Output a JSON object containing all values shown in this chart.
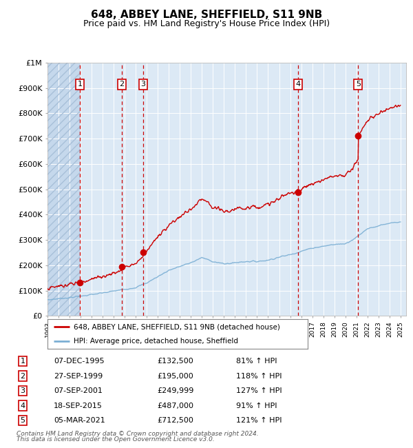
{
  "title": "648, ABBEY LANE, SHEFFIELD, S11 9NB",
  "subtitle": "Price paid vs. HM Land Registry's House Price Index (HPI)",
  "title_fontsize": 11,
  "subtitle_fontsize": 9,
  "background_color": "#dce9f5",
  "ylim": [
    0,
    1000000
  ],
  "yticks": [
    0,
    100000,
    200000,
    300000,
    400000,
    500000,
    600000,
    700000,
    800000,
    900000,
    1000000
  ],
  "ytick_labels": [
    "£0",
    "£100K",
    "£200K",
    "£300K",
    "£400K",
    "£500K",
    "£600K",
    "£700K",
    "£800K",
    "£900K",
    "£1M"
  ],
  "xmin": 1993,
  "xmax": 2025.5,
  "sales": [
    {
      "num": 1,
      "date": "07-DEC-1995",
      "price": 132500,
      "year": 1995.93,
      "pct": "81%",
      "dir": "↑"
    },
    {
      "num": 2,
      "date": "27-SEP-1999",
      "price": 195000,
      "year": 1999.73,
      "pct": "118%",
      "dir": "↑"
    },
    {
      "num": 3,
      "date": "07-SEP-2001",
      "price": 249999,
      "year": 2001.68,
      "pct": "127%",
      "dir": "↑"
    },
    {
      "num": 4,
      "date": "18-SEP-2015",
      "price": 487000,
      "year": 2015.71,
      "pct": "91%",
      "dir": "↑"
    },
    {
      "num": 5,
      "date": "05-MAR-2021",
      "price": 712500,
      "year": 2021.17,
      "pct": "121%",
      "dir": "↑"
    }
  ],
  "legend_label_red": "648, ABBEY LANE, SHEFFIELD, S11 9NB (detached house)",
  "legend_label_blue": "HPI: Average price, detached house, Sheffield",
  "footer_line1": "Contains HM Land Registry data © Crown copyright and database right 2024.",
  "footer_line2": "This data is licensed under the Open Government Licence v3.0.",
  "red_color": "#cc0000",
  "blue_color": "#7bafd4",
  "hpi_anchors_x": [
    1993.0,
    1994.0,
    1995.0,
    1996.0,
    1997.0,
    1998.0,
    1999.0,
    2000.0,
    2001.0,
    2002.0,
    2003.0,
    2004.0,
    2005.0,
    2006.0,
    2007.0,
    2008.0,
    2009.0,
    2010.0,
    2011.0,
    2012.0,
    2013.0,
    2014.0,
    2015.0,
    2016.0,
    2017.0,
    2018.0,
    2019.0,
    2020.0,
    2021.0,
    2022.0,
    2023.0,
    2024.0,
    2025.0
  ],
  "hpi_anchors_y": [
    63000,
    68000,
    72000,
    78000,
    84000,
    90000,
    98000,
    105000,
    112000,
    130000,
    155000,
    180000,
    195000,
    210000,
    230000,
    215000,
    205000,
    210000,
    215000,
    215000,
    220000,
    232000,
    242000,
    255000,
    268000,
    275000,
    282000,
    285000,
    310000,
    345000,
    355000,
    365000,
    370000
  ]
}
